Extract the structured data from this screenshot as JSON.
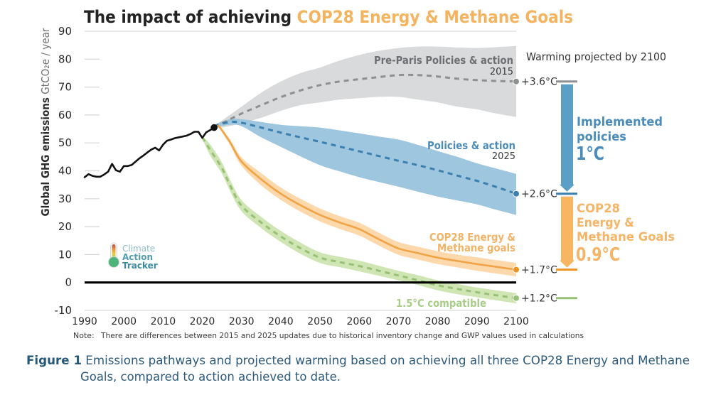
{
  "title": {
    "prefix": "The impact of achieving ",
    "highlight": "COP28 Energy & Methane Goals",
    "prefix_color": "#222222",
    "highlight_color": "#f4b45f"
  },
  "logo": {
    "line1": "Climate",
    "line2": "Action",
    "line3": "Tracker"
  },
  "note": {
    "label": "Note:",
    "text": "There are differences between 2015 and 2025 updates due to historical inventory change and GWP values used in calculations"
  },
  "caption": {
    "label": "Figure 1",
    "line1": " Emissions pathways and projected warming based on achieving all three COP28 Energy and Methane",
    "line2": "Goals, compared to action achieved to date."
  },
  "chart_data": {
    "type": "line",
    "title": "The impact of achieving COP28 Energy & Methane Goals",
    "xlabel": "",
    "ylabel_main": "Global GHG emissions",
    "ylabel_unit": "GtCO₂e / year",
    "xlim": [
      1990,
      2100
    ],
    "ylim": [
      -10,
      90
    ],
    "xticks": [
      1990,
      2000,
      2010,
      2020,
      2030,
      2040,
      2050,
      2060,
      2070,
      2080,
      2090,
      2100
    ],
    "yticks": [
      90,
      80,
      70,
      60,
      50,
      40,
      30,
      20,
      10,
      0,
      -10
    ],
    "grid": false,
    "legend": "inline labels at right end of each pathway",
    "warming_header": "Warming projected by 2100",
    "historical": {
      "name": "Historical emissions",
      "color": "#111111",
      "x": [
        1990,
        1991,
        1992,
        1993,
        1994,
        1995,
        1996,
        1997,
        1998,
        1999,
        2000,
        2001,
        2002,
        2003,
        2004,
        2005,
        2006,
        2007,
        2008,
        2009,
        2010,
        2011,
        2012,
        2013,
        2014,
        2015,
        2016,
        2017,
        2018,
        2019,
        2020,
        2021,
        2022,
        2023
      ],
      "y": [
        37.7,
        38.8,
        38.2,
        37.9,
        37.9,
        38.7,
        39.7,
        42.5,
        40.2,
        39.7,
        41.7,
        41.7,
        42.1,
        43.3,
        44.5,
        45.5,
        46.6,
        47.6,
        48.3,
        47.3,
        49.4,
        50.8,
        51.2,
        51.7,
        52.0,
        52.3,
        52.6,
        53.2,
        54.0,
        54.0,
        51.8,
        53.8,
        54.6,
        55.5
      ]
    },
    "series": [
      {
        "id": "pre-paris",
        "name": "Pre-Paris Policies & action",
        "sublabel": "2015",
        "style": "dashed",
        "color": "#8e8f91",
        "band_color": "#d9dadb",
        "label_color": "#6d6e71",
        "warming_2100": "+3.6°C",
        "x": [
          2023,
          2025,
          2030,
          2035,
          2040,
          2045,
          2050,
          2055,
          2060,
          2065,
          2070,
          2075,
          2080,
          2085,
          2090,
          2095,
          2100
        ],
        "median": [
          55.5,
          57,
          60.5,
          63.5,
          66.4,
          68.8,
          70.7,
          72,
          72.8,
          73.6,
          74.3,
          74.3,
          73.8,
          73,
          72.5,
          72.2,
          72
        ],
        "upper": [
          56,
          58,
          63,
          68,
          72,
          75,
          77,
          79.5,
          81.5,
          83,
          84,
          84.5,
          84.5,
          84.2,
          84,
          84.3,
          84.7
        ],
        "lower": [
          55,
          55.5,
          57,
          59,
          61.5,
          63.5,
          64.5,
          65.5,
          66,
          66.5,
          66.5,
          65.5,
          64.5,
          63,
          62,
          60.5,
          59.3
        ]
      },
      {
        "id": "policies-action",
        "name": "Policies & action",
        "sublabel": "2025",
        "style": "dashed",
        "color": "#3b7fae",
        "band_color": "#9fc6df",
        "label_color": "#4b8bb8",
        "warming_2100": "+2.6°C",
        "x": [
          2023,
          2027,
          2030,
          2035,
          2040,
          2045,
          2050,
          2055,
          2060,
          2065,
          2070,
          2075,
          2080,
          2085,
          2090,
          2095,
          2100
        ],
        "median": [
          56,
          57.5,
          57.2,
          55.5,
          53.7,
          52,
          50.4,
          48.7,
          47,
          45.3,
          43.6,
          42,
          40.2,
          38.3,
          36.4,
          34.2,
          31.8
        ],
        "upper": [
          56.5,
          58.5,
          58.5,
          57.5,
          56.5,
          56,
          55.5,
          54.5,
          53.4,
          52.3,
          51.2,
          49.3,
          47.1,
          45,
          42.7,
          40.8,
          38.9
        ],
        "lower": [
          55.5,
          56.5,
          56,
          52,
          48.6,
          45.2,
          42,
          39.8,
          37.7,
          36,
          34.3,
          32.5,
          30.8,
          29.4,
          28,
          26,
          24.2
        ]
      },
      {
        "id": "cop28-goals",
        "name": "COP28 Energy & Methane goals",
        "label_lines": [
          "COP28 Energy &",
          "Methane goals"
        ],
        "sublabel": "",
        "style": "solid",
        "color": "#f0a446",
        "band_color": "#fcd8ab",
        "label_color": "#f3b366",
        "dot_color": "#ec9322",
        "warming_2100": "+1.7°C",
        "x": [
          2024,
          2027,
          2030,
          2035,
          2040,
          2045,
          2050,
          2055,
          2060,
          2065,
          2070,
          2075,
          2080,
          2085,
          2090,
          2095,
          2100
        ],
        "median": [
          56.5,
          50.4,
          43.3,
          37,
          31.8,
          27.7,
          24.2,
          21.5,
          19.1,
          15.5,
          12.2,
          10.5,
          8.9,
          7.7,
          6.6,
          5.6,
          4.6
        ],
        "upper": [
          57,
          51.4,
          44.8,
          39.2,
          34,
          30,
          26.5,
          23.8,
          21.4,
          17.8,
          14.5,
          12.8,
          11.2,
          10,
          9,
          8,
          7
        ],
        "lower": [
          56,
          49.4,
          41.8,
          34.8,
          29.6,
          25.4,
          21.9,
          19.2,
          16.8,
          13.2,
          9.9,
          8.2,
          6.6,
          5.4,
          4.2,
          3.2,
          2.2
        ]
      },
      {
        "id": "one-point-five",
        "name": "1.5°C compatible",
        "sublabel": "",
        "style": "dashed",
        "color": "#97c176",
        "band_color": "#cfe5b3",
        "label_color": "#a9cc88",
        "warming_2100": "+1.2°C",
        "x": [
          2020,
          2022,
          2025,
          2027,
          2030,
          2035,
          2040,
          2045,
          2050,
          2055,
          2060,
          2065,
          2070,
          2075,
          2080,
          2085,
          2090,
          2095,
          2100
        ],
        "median": [
          52,
          47.5,
          41,
          35,
          27.5,
          21.5,
          16.5,
          12.3,
          8.9,
          7.3,
          5.9,
          4.2,
          2.5,
          0.8,
          -1,
          -2.3,
          -3.5,
          -4.6,
          -5.6
        ],
        "upper": [
          52.5,
          49.5,
          43,
          37,
          29.5,
          23.5,
          18.5,
          14.3,
          10.8,
          9.2,
          7.8,
          6,
          4.2,
          2.6,
          0.8,
          -0.5,
          -1.8,
          -2.8,
          -3.8
        ],
        "lower": [
          51.5,
          45.5,
          39,
          33,
          25.5,
          19.5,
          14.5,
          10.3,
          7,
          5.5,
          4,
          2.4,
          0.8,
          -0.9,
          -2.8,
          -4.2,
          -5.3,
          -6.4,
          -7.5
        ]
      }
    ],
    "annotations": [
      {
        "id": "implemented-policies",
        "lines": [
          "Implemented",
          "policies"
        ],
        "value": "1°C",
        "from_series": 0,
        "to_series": 1,
        "color": "#5b9fc7",
        "text_color": "#4a8dbb"
      },
      {
        "id": "cop28-gap",
        "lines": [
          "COP28",
          "Energy &",
          "Methane Goals"
        ],
        "value": "0.9°C",
        "from_series": 1,
        "to_series": 2,
        "color": "#f8b663",
        "text_color": "#f5b466"
      }
    ]
  }
}
